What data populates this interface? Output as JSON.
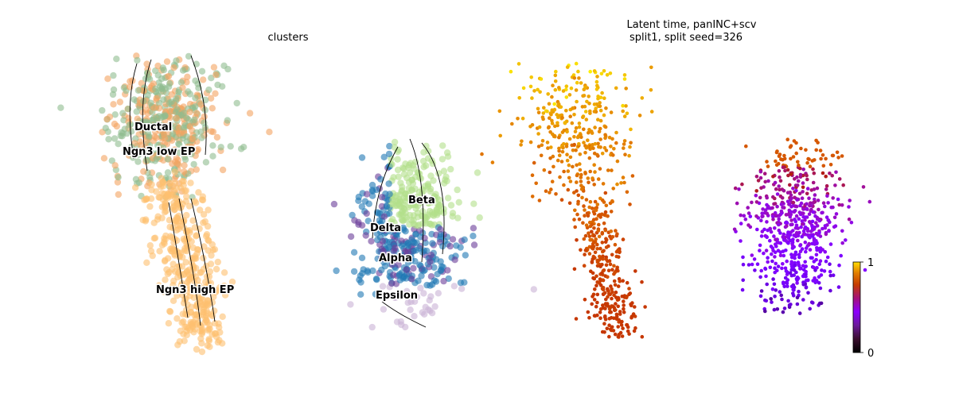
{
  "chart_data": [
    {
      "type": "scatter",
      "title": "clusters",
      "subtitle": "",
      "xlabel": "",
      "ylabel": "",
      "grid": false,
      "legend": "on data",
      "overlay": "velocity stream arrows",
      "clusters": [
        {
          "name": "Ductal",
          "color": "#8fbc8f"
        },
        {
          "name": "Ngn3 low EP",
          "color": "#f4a460"
        },
        {
          "name": "Ngn3 high EP",
          "color": "#fdbf6f"
        },
        {
          "name": "Beta",
          "color": "#b2df8a"
        },
        {
          "name": "Delta",
          "color": "#1f78b4"
        },
        {
          "name": "Alpha",
          "color": "#6a3d9a"
        },
        {
          "name": "Epsilon",
          "color": "#cab2d6"
        }
      ]
    },
    {
      "type": "scatter",
      "title": "Latent time, panINC+scv",
      "subtitle": "split1, split seed=326",
      "xlabel": "",
      "ylabel": "",
      "grid": false,
      "colormap": "gnuplot",
      "colorbar": {
        "min": 0,
        "max": 1,
        "ticks": [
          "0",
          "1"
        ]
      }
    }
  ]
}
